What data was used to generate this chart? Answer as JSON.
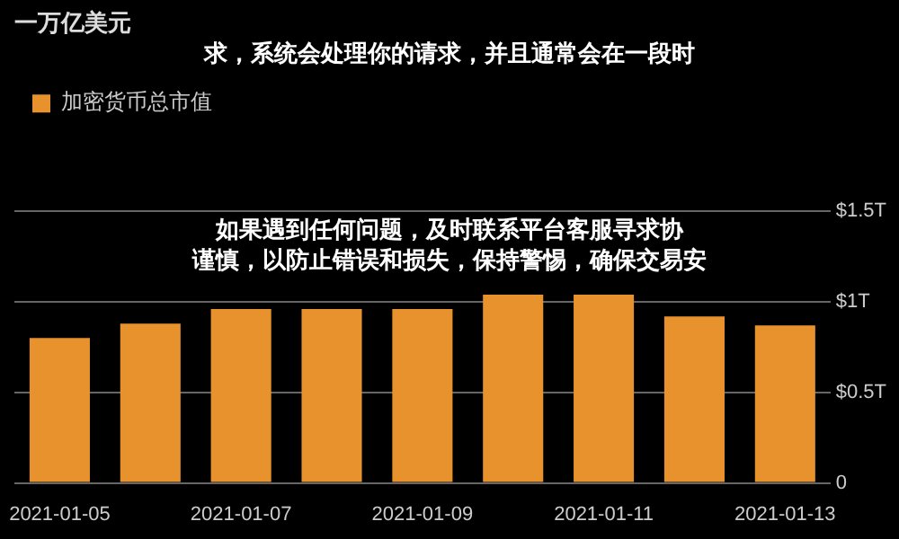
{
  "chart_data": {
    "type": "bar",
    "title": "一万亿美元",
    "categories": [
      "2021-01-05",
      null,
      "2021-01-07",
      null,
      "2021-01-09",
      null,
      "2021-01-11",
      null,
      "2021-01-13"
    ],
    "series": [
      {
        "name": "加密货币总市值",
        "color": "#e8922e",
        "values": [
          0.8,
          0.88,
          0.96,
          0.96,
          0.96,
          1.04,
          1.04,
          0.92,
          0.87
        ]
      }
    ],
    "ylim": [
      0,
      1.5
    ],
    "yticks": [
      0,
      {
        "value": 0.5,
        "label": "$0.5T"
      },
      {
        "value": 1,
        "label": "$1T"
      },
      {
        "value": 1.5,
        "label": "$1.5T"
      }
    ],
    "grid": "y",
    "legend": "top left",
    "annotations": [
      "求，系统会处理你的请求，并且通常会在一段时",
      "如果遇到任何问题，及时联系平台客服寻求协",
      "谨慎，以防止错误和损失，保持警惕，确保交易安"
    ]
  }
}
